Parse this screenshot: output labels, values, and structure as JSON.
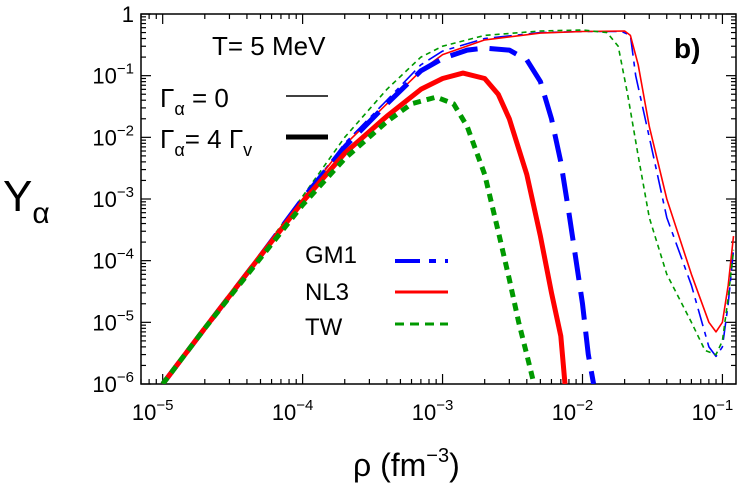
{
  "chart_data": {
    "type": "line",
    "xscale": "log",
    "yscale": "log",
    "xlim": [
      7e-06,
      0.125
    ],
    "ylim": [
      1e-06,
      1
    ],
    "xlabel": "ρ (fm",
    "xlabel_exp": "−3",
    "xlabel_close": ")",
    "ylabel_main": "Y",
    "ylabel_sub": "α",
    "panel_label": "b)",
    "annotations": {
      "temperature": "T= 5 MeV",
      "gamma0_main": "Γ",
      "gamma0_sub": "α",
      "gamma0_rest": " = 0",
      "gamma4_main": "Γ",
      "gamma4_sub": "α",
      "gamma4_rest": "= 4 Γ",
      "gamma4_sub2": "v"
    },
    "x_ticks": [
      {
        "base": "10",
        "exp": "−5",
        "value": 1e-05
      },
      {
        "base": "10",
        "exp": "−4",
        "value": 0.0001
      },
      {
        "base": "10",
        "exp": "−3",
        "value": 0.001
      },
      {
        "base": "10",
        "exp": "−2",
        "value": 0.01
      },
      {
        "base": "10",
        "exp": "−1",
        "value": 0.1
      }
    ],
    "y_ticks": [
      {
        "base": "1",
        "exp": "",
        "value": 1
      },
      {
        "base": "10",
        "exp": "−1",
        "value": 0.1
      },
      {
        "base": "10",
        "exp": "−2",
        "value": 0.01
      },
      {
        "base": "10",
        "exp": "−3",
        "value": 0.001
      },
      {
        "base": "10",
        "exp": "−4",
        "value": 0.0001
      },
      {
        "base": "10",
        "exp": "−5",
        "value": 1e-05
      },
      {
        "base": "10",
        "exp": "−6",
        "value": 1e-06
      }
    ],
    "legend": [
      {
        "name": "GM1",
        "color": "#0000ff",
        "dash": "long"
      },
      {
        "name": "NL3",
        "color": "#ff0000",
        "dash": "solid"
      },
      {
        "name": "TW",
        "color": "#009900",
        "dash": "short"
      }
    ],
    "series": [
      {
        "name": "GM1",
        "variant": "Γα = 0",
        "color": "#0000ff",
        "points": [
          [
            1e-05,
            1e-06
          ],
          [
            2e-05,
            8e-06
          ],
          [
            5e-05,
            0.00012
          ],
          [
            0.0001,
            0.001
          ],
          [
            0.0002,
            0.008
          ],
          [
            0.0004,
            0.04
          ],
          [
            0.0007,
            0.15
          ],
          [
            0.001,
            0.25
          ],
          [
            0.002,
            0.4
          ],
          [
            0.005,
            0.5
          ],
          [
            0.01,
            0.52
          ],
          [
            0.019,
            0.52
          ],
          [
            0.022,
            0.45
          ],
          [
            0.024,
            0.1
          ],
          [
            0.03,
            0.01
          ],
          [
            0.04,
            0.0005
          ],
          [
            0.06,
            4e-05
          ],
          [
            0.08,
            4e-06
          ],
          [
            0.09,
            2.8e-06
          ],
          [
            0.1,
            4e-06
          ],
          [
            0.11,
            2e-05
          ],
          [
            0.12,
            0.00015
          ]
        ]
      },
      {
        "name": "NL3",
        "variant": "Γα = 0",
        "color": "#ff0000",
        "points": [
          [
            1e-05,
            1e-06
          ],
          [
            2e-05,
            8e-06
          ],
          [
            5e-05,
            0.00012
          ],
          [
            0.0001,
            0.001
          ],
          [
            0.0002,
            0.0075
          ],
          [
            0.0004,
            0.035
          ],
          [
            0.0007,
            0.12
          ],
          [
            0.001,
            0.22
          ],
          [
            0.002,
            0.38
          ],
          [
            0.005,
            0.49
          ],
          [
            0.01,
            0.52
          ],
          [
            0.02,
            0.53
          ],
          [
            0.022,
            0.45
          ],
          [
            0.025,
            0.15
          ],
          [
            0.03,
            0.015
          ],
          [
            0.04,
            0.001
          ],
          [
            0.06,
            6e-05
          ],
          [
            0.08,
            1e-05
          ],
          [
            0.09,
            7e-06
          ],
          [
            0.1,
            1e-05
          ],
          [
            0.11,
            4e-05
          ],
          [
            0.12,
            0.00025
          ]
        ]
      },
      {
        "name": "TW",
        "variant": "Γα = 0",
        "color": "#009900",
        "points": [
          [
            1e-05,
            1e-06
          ],
          [
            2e-05,
            8e-06
          ],
          [
            5e-05,
            0.00013
          ],
          [
            0.0001,
            0.0011
          ],
          [
            0.0002,
            0.01
          ],
          [
            0.0004,
            0.06
          ],
          [
            0.0007,
            0.2
          ],
          [
            0.001,
            0.3
          ],
          [
            0.002,
            0.45
          ],
          [
            0.005,
            0.53
          ],
          [
            0.01,
            0.55
          ],
          [
            0.015,
            0.5
          ],
          [
            0.018,
            0.3
          ],
          [
            0.021,
            0.05
          ],
          [
            0.025,
            0.005
          ],
          [
            0.03,
            0.0005
          ],
          [
            0.04,
            6e-05
          ],
          [
            0.06,
            1e-05
          ],
          [
            0.075,
            3.5e-06
          ],
          [
            0.09,
            3e-06
          ],
          [
            0.1,
            5e-06
          ],
          [
            0.11,
            2.5e-05
          ],
          [
            0.12,
            0.00015
          ]
        ]
      },
      {
        "name": "GM1",
        "variant": "Γα = 4 Γv",
        "color": "#0000ff",
        "points": [
          [
            1e-05,
            1e-06
          ],
          [
            2e-05,
            8e-06
          ],
          [
            5e-05,
            0.00012
          ],
          [
            0.0001,
            0.001
          ],
          [
            0.0002,
            0.007
          ],
          [
            0.0004,
            0.035
          ],
          [
            0.0007,
            0.12
          ],
          [
            0.001,
            0.19
          ],
          [
            0.0015,
            0.26
          ],
          [
            0.002,
            0.28
          ],
          [
            0.003,
            0.26
          ],
          [
            0.004,
            0.18
          ],
          [
            0.005,
            0.08
          ],
          [
            0.006,
            0.02
          ],
          [
            0.007,
            0.004
          ],
          [
            0.008,
            0.0006
          ],
          [
            0.009,
            0.0001
          ],
          [
            0.01,
            2e-05
          ],
          [
            0.011,
            3e-06
          ],
          [
            0.012,
            1e-06
          ]
        ]
      },
      {
        "name": "NL3",
        "variant": "Γα = 4 Γv",
        "color": "#ff0000",
        "points": [
          [
            1e-05,
            1e-06
          ],
          [
            2e-05,
            8e-06
          ],
          [
            5e-05,
            0.00012
          ],
          [
            0.0001,
            0.0009
          ],
          [
            0.0002,
            0.0055
          ],
          [
            0.0004,
            0.022
          ],
          [
            0.0007,
            0.06
          ],
          [
            0.001,
            0.09
          ],
          [
            0.0014,
            0.11
          ],
          [
            0.002,
            0.09
          ],
          [
            0.0025,
            0.05
          ],
          [
            0.003,
            0.02
          ],
          [
            0.004,
            0.0025
          ],
          [
            0.005,
            0.00025
          ],
          [
            0.006,
            3e-05
          ],
          [
            0.007,
            6e-06
          ],
          [
            0.0075,
            1e-06
          ]
        ]
      },
      {
        "name": "TW",
        "variant": "Γα = 4 Γv",
        "color": "#009900",
        "points": [
          [
            1e-05,
            1e-06
          ],
          [
            2e-05,
            8e-06
          ],
          [
            5e-05,
            0.00011
          ],
          [
            0.0001,
            0.0008
          ],
          [
            0.0002,
            0.0045
          ],
          [
            0.0004,
            0.018
          ],
          [
            0.0006,
            0.035
          ],
          [
            0.0009,
            0.045
          ],
          [
            0.0012,
            0.035
          ],
          [
            0.0015,
            0.015
          ],
          [
            0.002,
            0.0025
          ],
          [
            0.0025,
            0.0003
          ],
          [
            0.003,
            5e-05
          ],
          [
            0.0035,
            1e-05
          ],
          [
            0.004,
            3e-06
          ],
          [
            0.0045,
            1e-06
          ]
        ]
      }
    ]
  }
}
